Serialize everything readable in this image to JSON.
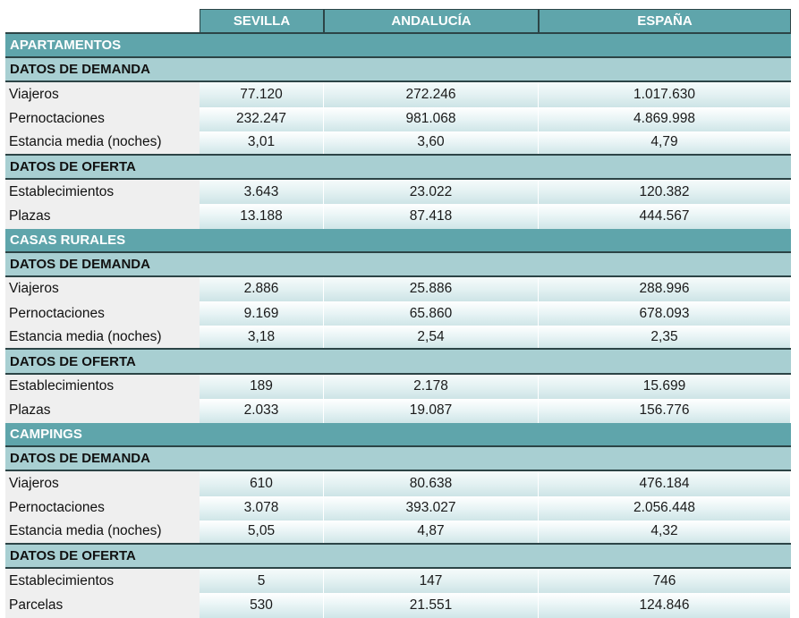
{
  "header": {
    "col0": "",
    "col1": "SEVILLA",
    "col2": "ANDALUCÍA",
    "col3": "ESPAÑA"
  },
  "sections": [
    {
      "title": "APARTAMENTOS",
      "demand": {
        "title": "DATOS DE DEMANDA",
        "rows": [
          {
            "label": "Viajeros",
            "sevilla": "77.120",
            "andalucia": "272.246",
            "espana": "1.017.630"
          },
          {
            "label": "Pernoctaciones",
            "sevilla": "232.247",
            "andalucia": "981.068",
            "espana": "4.869.998"
          },
          {
            "label": "Estancia media (noches)",
            "sevilla": "3,01",
            "andalucia": "3,60",
            "espana": "4,79"
          }
        ]
      },
      "supply": {
        "title": "DATOS DE OFERTA",
        "rows": [
          {
            "label": "Establecimientos",
            "sevilla": "3.643",
            "andalucia": "23.022",
            "espana": "120.382"
          },
          {
            "label": "Plazas",
            "sevilla": "13.188",
            "andalucia": "87.418",
            "espana": "444.567"
          }
        ]
      }
    },
    {
      "title": "CASAS RURALES",
      "demand": {
        "title": "DATOS DE DEMANDA",
        "rows": [
          {
            "label": "Viajeros",
            "sevilla": "2.886",
            "andalucia": "25.886",
            "espana": "288.996"
          },
          {
            "label": "Pernoctaciones",
            "sevilla": "9.169",
            "andalucia": "65.860",
            "espana": "678.093"
          },
          {
            "label": "Estancia media (noches)",
            "sevilla": "3,18",
            "andalucia": "2,54",
            "espana": "2,35"
          }
        ]
      },
      "supply": {
        "title": "DATOS DE OFERTA",
        "rows": [
          {
            "label": "Establecimientos",
            "sevilla": "189",
            "andalucia": "2.178",
            "espana": "15.699"
          },
          {
            "label": "Plazas",
            "sevilla": "2.033",
            "andalucia": "19.087",
            "espana": "156.776"
          }
        ]
      }
    },
    {
      "title": "CAMPINGS",
      "demand": {
        "title": "DATOS DE DEMANDA",
        "rows": [
          {
            "label": "Viajeros",
            "sevilla": "610",
            "andalucia": "80.638",
            "espana": "476.184"
          },
          {
            "label": "Pernoctaciones",
            "sevilla": "3.078",
            "andalucia": "393.027",
            "espana": "2.056.448"
          },
          {
            "label": "Estancia media (noches)",
            "sevilla": "5,05",
            "andalucia": "4,87",
            "espana": "4,32"
          }
        ]
      },
      "supply": {
        "title": "DATOS DE OFERTA",
        "rows": [
          {
            "label": "Establecimientos",
            "sevilla": "5",
            "andalucia": "147",
            "espana": "746"
          },
          {
            "label": "Parcelas",
            "sevilla": "530",
            "andalucia": "21.551",
            "espana": "124.846"
          }
        ]
      }
    }
  ]
}
